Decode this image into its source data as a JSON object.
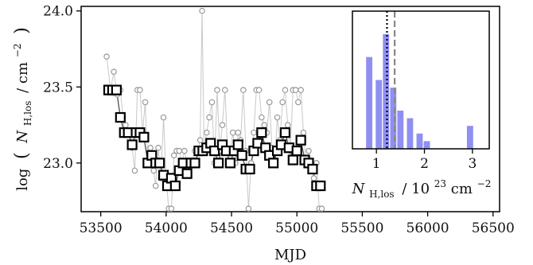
{
  "chart_data": [
    {
      "type": "scatter",
      "xlabel": "MJD",
      "ylabel_parts": {
        "open": "log",
        "paren_l": "(",
        "symbol": "N",
        "sub": "H,los",
        "slash": "/ cm",
        "sup": "−2",
        "paren_r": ")"
      },
      "xlim": [
        53350,
        56550
      ],
      "ylim": [
        22.68,
        24.03
      ],
      "x_ticks": [
        53500,
        54000,
        54500,
        55000,
        55500,
        56000,
        56500
      ],
      "x_tick_labels": [
        "53500",
        "54000",
        "54500",
        "55000",
        "55500",
        "56000",
        "56500"
      ],
      "y_ticks": [
        23.0,
        23.5,
        24.0
      ],
      "y_tick_labels": [
        "23.0",
        "23.5",
        "24.0"
      ],
      "grid": false,
      "series": [
        {
          "marker": "open circle",
          "color": "#9a9a9a",
          "points": [
            [
              53545,
              23.7
            ],
            [
              53575,
              23.48
            ],
            [
              53600,
              23.6
            ],
            [
              53625,
              23.45
            ],
            [
              53650,
              23.48
            ],
            [
              53670,
              23.3
            ],
            [
              53690,
              23.25
            ],
            [
              53715,
              23.2
            ],
            [
              53740,
              23.1
            ],
            [
              53760,
              22.95
            ],
            [
              53780,
              23.48
            ],
            [
              53800,
              23.48
            ],
            [
              53820,
              23.2
            ],
            [
              53840,
              23.4
            ],
            [
              53860,
              23.0
            ],
            [
              53880,
              23.1
            ],
            [
              53905,
              22.95
            ],
            [
              53920,
              22.85
            ],
            [
              53940,
              23.1
            ],
            [
              53960,
              22.9
            ],
            [
              53980,
              23.3
            ],
            [
              54000,
              22.9
            ],
            [
              54020,
              22.7
            ],
            [
              54040,
              22.7
            ],
            [
              54060,
              23.05
            ],
            [
              54080,
              23.08
            ],
            [
              54100,
              23.08
            ],
            [
              54120,
              23.0
            ],
            [
              54140,
              23.08
            ],
            [
              54160,
              23.0
            ],
            [
              54180,
              23.0
            ],
            [
              54200,
              23.0
            ],
            [
              54220,
              23.08
            ],
            [
              54240,
              23.08
            ],
            [
              54260,
              23.15
            ],
            [
              54275,
              24.0
            ],
            [
              54290,
              23.1
            ],
            [
              54310,
              23.2
            ],
            [
              54330,
              23.3
            ],
            [
              54350,
              23.4
            ],
            [
              54370,
              23.0
            ],
            [
              54390,
              23.48
            ],
            [
              54410,
              23.08
            ],
            [
              54430,
              23.25
            ],
            [
              54450,
              23.48
            ],
            [
              54470,
              23.08
            ],
            [
              54490,
              23.08
            ],
            [
              54510,
              23.2
            ],
            [
              54530,
              23.0
            ],
            [
              54550,
              23.2
            ],
            [
              54570,
              23.15
            ],
            [
              54590,
              23.48
            ],
            [
              54610,
              23.08
            ],
            [
              54630,
              22.7
            ],
            [
              54650,
              23.0
            ],
            [
              54670,
              23.2
            ],
            [
              54690,
              23.48
            ],
            [
              54710,
              23.48
            ],
            [
              54730,
              23.3
            ],
            [
              54750,
              23.25
            ],
            [
              54770,
              23.2
            ],
            [
              54790,
              23.4
            ],
            [
              54810,
              23.1
            ],
            [
              54830,
              23.0
            ],
            [
              54850,
              23.3
            ],
            [
              54870,
              23.15
            ],
            [
              54890,
              23.4
            ],
            [
              54910,
              23.48
            ],
            [
              54930,
              23.25
            ],
            [
              54950,
              23.08
            ],
            [
              54970,
              23.48
            ],
            [
              54990,
              23.48
            ],
            [
              55010,
              23.4
            ],
            [
              55030,
              23.48
            ],
            [
              55050,
              23.2
            ],
            [
              55070,
              23.0
            ],
            [
              55090,
              23.08
            ],
            [
              55110,
              22.95
            ],
            [
              55130,
              22.9
            ],
            [
              55150,
              23.0
            ],
            [
              55170,
              22.7
            ],
            [
              55190,
              22.7
            ]
          ]
        },
        {
          "marker": "open square",
          "color": "#000000",
          "points": [
            [
              53560,
              23.48
            ],
            [
              53590,
              23.48
            ],
            [
              53620,
              23.48
            ],
            [
              53650,
              23.3
            ],
            [
              53680,
              23.2
            ],
            [
              53710,
              23.2
            ],
            [
              53740,
              23.12
            ],
            [
              53770,
              23.2
            ],
            [
              53800,
              23.2
            ],
            [
              53830,
              23.17
            ],
            [
              53860,
              23.0
            ],
            [
              53890,
              23.05
            ],
            [
              53920,
              23.0
            ],
            [
              53950,
              23.0
            ],
            [
              53980,
              22.92
            ],
            [
              54010,
              22.85
            ],
            [
              54040,
              22.9
            ],
            [
              54070,
              22.85
            ],
            [
              54100,
              22.95
            ],
            [
              54130,
              23.0
            ],
            [
              54160,
              22.93
            ],
            [
              54190,
              23.0
            ],
            [
              54220,
              23.0
            ],
            [
              54250,
              23.08
            ],
            [
              54280,
              23.08
            ],
            [
              54310,
              23.1
            ],
            [
              54340,
              23.13
            ],
            [
              54370,
              23.08
            ],
            [
              54400,
              23.0
            ],
            [
              54430,
              23.12
            ],
            [
              54460,
              23.08
            ],
            [
              54490,
              23.0
            ],
            [
              54520,
              23.08
            ],
            [
              54550,
              23.12
            ],
            [
              54580,
              23.05
            ],
            [
              54610,
              22.96
            ],
            [
              54640,
              22.96
            ],
            [
              54670,
              23.08
            ],
            [
              54700,
              23.13
            ],
            [
              54730,
              23.2
            ],
            [
              54760,
              23.1
            ],
            [
              54790,
              23.05
            ],
            [
              54820,
              23.0
            ],
            [
              54850,
              23.08
            ],
            [
              54880,
              23.12
            ],
            [
              54910,
              23.2
            ],
            [
              54940,
              23.1
            ],
            [
              54970,
              23.02
            ],
            [
              55000,
              23.08
            ],
            [
              55030,
              23.15
            ],
            [
              55060,
              23.02
            ],
            [
              55090,
              23.0
            ],
            [
              55120,
              22.96
            ],
            [
              55150,
              22.85
            ],
            [
              55180,
              22.85
            ]
          ]
        }
      ]
    },
    {
      "type": "bar",
      "xlabel_parts": {
        "symbol": "N",
        "sub": "H,los",
        "slash": "/ 10",
        "exp": "23",
        "unit": " cm",
        "unit_sup": "−2"
      },
      "xlim": [
        0.5,
        3.35
      ],
      "ylim": [
        0,
        18
      ],
      "x_ticks": [
        1,
        2,
        3
      ],
      "x_tick_labels": [
        "1",
        "2",
        "3"
      ],
      "bar_color": "#8f8ff2",
      "bars": [
        {
          "x": 0.85,
          "value": 12
        },
        {
          "x": 1.05,
          "value": 9
        },
        {
          "x": 1.2,
          "value": 15
        },
        {
          "x": 1.35,
          "value": 8
        },
        {
          "x": 1.5,
          "value": 5
        },
        {
          "x": 1.7,
          "value": 4
        },
        {
          "x": 1.9,
          "value": 2
        },
        {
          "x": 2.05,
          "value": 1
        },
        {
          "x": 2.95,
          "value": 3
        }
      ],
      "bar_width": 0.13,
      "vlines": [
        {
          "x": 1.22,
          "style": "dotted",
          "color": "#000000"
        },
        {
          "x": 1.38,
          "style": "dashed",
          "color": "#888888"
        }
      ]
    }
  ]
}
